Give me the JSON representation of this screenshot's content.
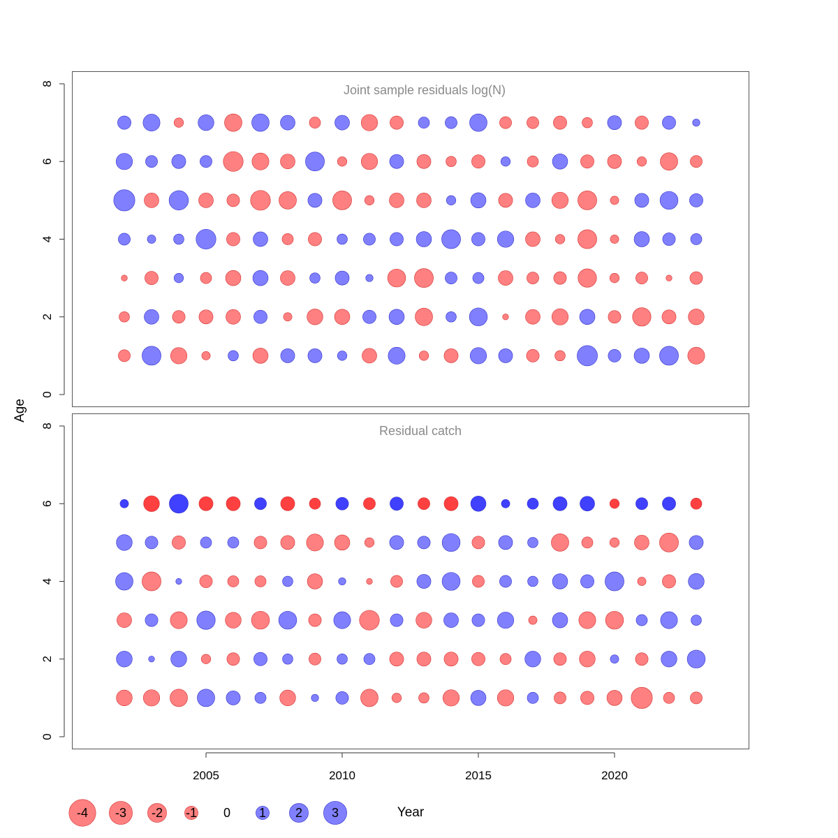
{
  "chart_data": {
    "type": "scatter",
    "subtype": "bubble",
    "xlabel": "Year",
    "ylabel": "Age",
    "xlim": [
      2000,
      2025
    ],
    "ylim": [
      0,
      8
    ],
    "x_ticks": [
      2005,
      2010,
      2015,
      2020
    ],
    "y_ticks": [
      0,
      2,
      4,
      6,
      8
    ],
    "years": [
      2002,
      2003,
      2004,
      2005,
      2006,
      2007,
      2008,
      2009,
      2010,
      2011,
      2012,
      2013,
      2014,
      2015,
      2016,
      2017,
      2018,
      2019,
      2020,
      2021,
      2022,
      2023
    ],
    "colors": {
      "positive": "#8080ff",
      "negative": "#ff8080",
      "positive_strong": "#4040ff",
      "negative_strong": "#ff4040",
      "positive_edge": "#3030c8",
      "negative_edge": "#d03030"
    },
    "panels": [
      {
        "title": "Joint sample residuals log(N)",
        "ages": [
          1,
          2,
          3,
          4,
          5,
          6,
          7
        ],
        "residuals": [
          [
            -0.8,
            2.0,
            -1.5,
            -0.4,
            0.6,
            -1.3,
            1.1,
            1.1,
            0.5,
            -1.2,
            1.6,
            -0.5,
            -1.1,
            1.5,
            1.1,
            -0.9,
            -0.6,
            2.3,
            0.9,
            1.3,
            2.0,
            -1.6
          ],
          [
            -0.6,
            1.2,
            -0.9,
            -1.1,
            -1.2,
            1.0,
            -0.4,
            -1.4,
            -1.3,
            1.0,
            1.3,
            -1.7,
            0.6,
            1.8,
            -0.2,
            -1.2,
            -1.5,
            1.3,
            -0.9,
            -1.9,
            -1.1,
            -1.4
          ],
          [
            -0.2,
            -1.0,
            0.5,
            -0.7,
            -1.3,
            1.3,
            -1.2,
            0.6,
            1.1,
            0.3,
            -1.8,
            -2.0,
            0.8,
            0.7,
            -1.2,
            -0.8,
            -0.9,
            -1.9,
            -0.5,
            -0.8,
            -0.2,
            -0.9
          ],
          [
            0.8,
            0.4,
            0.6,
            2.2,
            -1.0,
            1.2,
            -0.7,
            -1.0,
            0.6,
            0.8,
            1.0,
            1.3,
            2.0,
            1.0,
            1.5,
            -1.2,
            -0.5,
            -2.0,
            -0.4,
            1.3,
            0.9,
            0.7
          ],
          [
            2.5,
            -1.2,
            2.1,
            -1.2,
            -0.9,
            -2.2,
            -1.7,
            1.1,
            -2.0,
            -0.5,
            -1.2,
            -1.2,
            0.5,
            1.3,
            -1.1,
            1.2,
            -1.5,
            -2.0,
            -0.4,
            1.1,
            1.8,
            1.0
          ],
          [
            1.5,
            0.8,
            1.1,
            0.8,
            -2.2,
            -1.6,
            -1.2,
            2.0,
            -0.5,
            -1.5,
            1.1,
            -1.1,
            -0.6,
            -1.0,
            0.5,
            -0.7,
            1.3,
            -1.0,
            -1.1,
            -0.5,
            -1.7,
            -0.8
          ],
          [
            1.0,
            1.6,
            -0.5,
            1.4,
            -1.7,
            1.7,
            1.2,
            -0.7,
            1.2,
            -1.5,
            -1.0,
            0.7,
            0.8,
            1.7,
            -0.8,
            -0.8,
            -1.0,
            -0.6,
            1.1,
            -1.0,
            1.0,
            0.3
          ]
        ]
      },
      {
        "title": "Residual catch",
        "ages": [
          1,
          2,
          3,
          4,
          5,
          6
        ],
        "residuals": [
          [
            -1.4,
            -1.5,
            -1.7,
            1.7,
            1.1,
            0.7,
            -1.4,
            0.3,
            0.9,
            -1.7,
            -0.5,
            -0.6,
            -1.5,
            1.3,
            -1.5,
            0.7,
            -0.8,
            -1.0,
            -1.3,
            -2.5,
            -0.7,
            -0.8
          ],
          [
            1.4,
            0.2,
            1.4,
            -0.5,
            -0.9,
            1.0,
            0.6,
            -0.8,
            0.6,
            0.7,
            -1.1,
            -1.1,
            -1.1,
            -1.0,
            -0.7,
            1.4,
            -0.9,
            -1.4,
            0.4,
            -0.9,
            1.4,
            1.8
          ],
          [
            -1.2,
            0.9,
            -1.6,
            1.9,
            -1.4,
            -1.8,
            1.8,
            -0.9,
            1.6,
            -2.2,
            0.9,
            -1.4,
            1.2,
            0.9,
            1.5,
            -0.4,
            1.3,
            -1.6,
            -1.8,
            0.7,
            1.6,
            0.6
          ],
          [
            1.7,
            -2.0,
            0.2,
            -0.9,
            -0.7,
            -0.7,
            0.6,
            -1.3,
            0.3,
            -0.2,
            -0.8,
            1.1,
            1.8,
            -0.8,
            0.8,
            0.6,
            1.3,
            1.0,
            2.0,
            -0.4,
            -1.0,
            1.4
          ],
          [
            1.4,
            0.9,
            -1.0,
            0.7,
            0.7,
            -0.9,
            -1.1,
            -1.6,
            -1.3,
            -0.5,
            1.1,
            0.9,
            1.8,
            -0.9,
            1.1,
            0.6,
            -1.7,
            -0.7,
            -0.5,
            -1.2,
            -2.0,
            1.1
          ],
          [
            0.4,
            -1.4,
            2.0,
            -1.1,
            -1.1,
            0.8,
            -1.1,
            -0.7,
            0.9,
            -0.8,
            1.0,
            -0.8,
            -1.1,
            1.3,
            0.4,
            0.7,
            1.1,
            1.2,
            -0.5,
            0.8,
            1.0,
            -0.7
          ]
        ]
      }
    ],
    "legend": {
      "placement": "bottom-left",
      "values": [
        -4,
        -3,
        -2,
        -1,
        0,
        1,
        2,
        3
      ],
      "labels": [
        "-4",
        "-3",
        "-2",
        "-1",
        "0",
        "1",
        "2",
        "3"
      ]
    }
  }
}
